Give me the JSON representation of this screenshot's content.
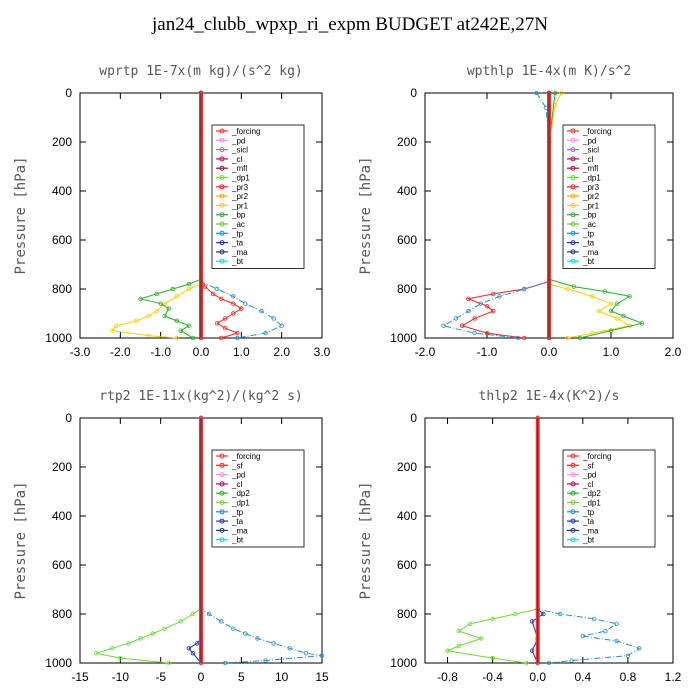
{
  "title": "jan24_clubb_wpxp_ri_expm  BUDGET at242E,27N",
  "chart_data": [
    {
      "type": "line",
      "title": "wprtp  1E-7x(m kg)/(s^2 kg)",
      "ylabel": "Pressure [hPa]",
      "xlim": [
        -3,
        3
      ],
      "xticks": [
        "-3.0",
        "-2.0",
        "-1.0",
        "0.0",
        "1.0",
        "2.0",
        "3.0"
      ],
      "xtick_values": [
        -3,
        -2,
        -1,
        0,
        1,
        2,
        3
      ],
      "ylim": [
        1000,
        0
      ],
      "yticks": [
        "0",
        "200",
        "400",
        "600",
        "800",
        "1000"
      ],
      "ytick_values": [
        0,
        200,
        400,
        600,
        800,
        1000
      ],
      "legend": [
        "_forcing",
        "_pd",
        "_sicl",
        "_cl",
        "_mfl",
        "_dp1",
        "_pr3",
        "_pr2",
        "_pr1",
        "_bp",
        "_ac",
        "_tp",
        "_ta",
        "_ma",
        "_bt"
      ],
      "series": [
        {
          "name": "_dp1",
          "color": "#ff2020",
          "values": [
            [
              0,
              0
            ],
            [
              0,
              750
            ],
            [
              0.1,
              790
            ],
            [
              0.3,
              820
            ],
            [
              0.5,
              840
            ],
            [
              0.8,
              860
            ],
            [
              1.0,
              880
            ],
            [
              0.8,
              900
            ],
            [
              0.6,
              920
            ],
            [
              0.4,
              940
            ],
            [
              0.6,
              960
            ],
            [
              0.9,
              980
            ],
            [
              0.5,
              1000
            ]
          ]
        },
        {
          "name": "_pr1",
          "color": "#ffcc00",
          "values": [
            [
              0,
              0
            ],
            [
              0,
              780
            ],
            [
              -0.3,
              800
            ],
            [
              -0.6,
              830
            ],
            [
              -0.9,
              860
            ],
            [
              -1.1,
              890
            ],
            [
              -1.3,
              910
            ],
            [
              -1.6,
              930
            ],
            [
              -2.1,
              950
            ],
            [
              -2.2,
              970
            ],
            [
              -1.3,
              990
            ],
            [
              -0.6,
              1000
            ]
          ]
        },
        {
          "name": "_bp",
          "color": "#22b422",
          "values": [
            [
              0,
              0
            ],
            [
              0,
              760
            ],
            [
              -0.3,
              780
            ],
            [
              -0.7,
              800
            ],
            [
              -1.1,
              820
            ],
            [
              -1.5,
              840
            ],
            [
              -1.0,
              860
            ],
            [
              -0.8,
              880
            ],
            [
              -0.9,
              910
            ],
            [
              -0.6,
              930
            ],
            [
              -0.3,
              950
            ],
            [
              -0.5,
              970
            ],
            [
              -0.2,
              1000
            ]
          ]
        },
        {
          "name": "_tp",
          "color": "#2090d0",
          "values": [
            [
              0,
              0
            ],
            [
              0,
              770
            ],
            [
              0.4,
              800
            ],
            [
              0.8,
              830
            ],
            [
              1.1,
              860
            ],
            [
              1.5,
              890
            ],
            [
              1.8,
              920
            ],
            [
              2.0,
              950
            ],
            [
              1.6,
              980
            ],
            [
              0.9,
              1000
            ]
          ]
        },
        {
          "name": "_bt",
          "color": "#b00020",
          "values": [
            [
              0,
              0
            ],
            [
              0,
              1000
            ]
          ]
        }
      ]
    },
    {
      "type": "line",
      "title": "wpthlp  1E-4x(m K)/s^2",
      "ylabel": "Pressure [hPa]",
      "xlim": [
        -2,
        2
      ],
      "xticks": [
        "-2.0",
        "-1.0",
        "0.0",
        "1.0",
        "2.0"
      ],
      "xtick_values": [
        -2,
        -1,
        0,
        1,
        2
      ],
      "ylim": [
        1000,
        0
      ],
      "yticks": [
        "0",
        "200",
        "400",
        "600",
        "800",
        "1000"
      ],
      "ytick_values": [
        0,
        200,
        400,
        600,
        800,
        1000
      ],
      "legend": [
        "_forcing",
        "_pd",
        "_sicl",
        "_cl",
        "_mfl",
        "_dp1",
        "_pr3",
        "_pr2",
        "_pr1",
        "_bp",
        "_ac",
        "_tp",
        "_ta",
        "_ma",
        "_bt"
      ],
      "series": [
        {
          "name": "_dp1",
          "color": "#ff2020",
          "values": [
            [
              0,
              0
            ],
            [
              0,
              770
            ],
            [
              -0.4,
              800
            ],
            [
              -0.9,
              820
            ],
            [
              -1.3,
              840
            ],
            [
              -1.0,
              870
            ],
            [
              -0.9,
              890
            ],
            [
              -1.2,
              920
            ],
            [
              -1.4,
              950
            ],
            [
              -1.0,
              980
            ],
            [
              -0.4,
              1000
            ]
          ]
        },
        {
          "name": "_pr1",
          "color": "#ffcc00",
          "values": [
            [
              0.2,
              0
            ],
            [
              0.1,
              50
            ],
            [
              0,
              200
            ],
            [
              0,
              780
            ],
            [
              0.3,
              800
            ],
            [
              0.7,
              830
            ],
            [
              1.0,
              860
            ],
            [
              0.8,
              890
            ],
            [
              1.1,
              920
            ],
            [
              1.3,
              950
            ],
            [
              0.7,
              980
            ],
            [
              0.3,
              1000
            ]
          ]
        },
        {
          "name": "_bp",
          "color": "#22b422",
          "values": [
            [
              0.1,
              0
            ],
            [
              0,
              200
            ],
            [
              0,
              760
            ],
            [
              0.4,
              790
            ],
            [
              0.9,
              810
            ],
            [
              1.3,
              830
            ],
            [
              1.1,
              860
            ],
            [
              1.0,
              890
            ],
            [
              1.2,
              910
            ],
            [
              1.5,
              940
            ],
            [
              1.0,
              970
            ],
            [
              0.5,
              1000
            ]
          ]
        },
        {
          "name": "_tp",
          "color": "#2090d0",
          "values": [
            [
              -0.2,
              0
            ],
            [
              -0.05,
              60
            ],
            [
              0,
              200
            ],
            [
              0,
              770
            ],
            [
              -0.4,
              800
            ],
            [
              -0.8,
              830
            ],
            [
              -1.1,
              860
            ],
            [
              -1.3,
              890
            ],
            [
              -1.5,
              920
            ],
            [
              -1.7,
              950
            ],
            [
              -1.2,
              980
            ],
            [
              -0.5,
              1000
            ]
          ]
        },
        {
          "name": "_bt",
          "color": "#b00020",
          "values": [
            [
              0,
              0
            ],
            [
              0,
              1000
            ]
          ]
        }
      ]
    },
    {
      "type": "line",
      "title": "rtp2  1E-11x(kg^2)/(kg^2 s)",
      "ylabel": "Pressure [hPa]",
      "xlim": [
        -15,
        15
      ],
      "xticks": [
        "-15",
        "-10",
        "-5",
        "0",
        "5",
        "10",
        "15"
      ],
      "xtick_values": [
        -15,
        -10,
        -5,
        0,
        5,
        10,
        15
      ],
      "ylim": [
        1000,
        0
      ],
      "yticks": [
        "0",
        "200",
        "400",
        "600",
        "800",
        "1000"
      ],
      "ytick_values": [
        0,
        200,
        400,
        600,
        800,
        1000
      ],
      "legend": [
        "_forcing",
        "_sf",
        "_pd",
        "_cl",
        "_dp2",
        "_dp1",
        "_tp",
        "_ta",
        "_ma",
        "_bt"
      ],
      "series": [
        {
          "name": "_dp1",
          "color": "#66dd33",
          "values": [
            [
              0,
              0
            ],
            [
              0,
              780
            ],
            [
              -1,
              800
            ],
            [
              -2.5,
              830
            ],
            [
              -4.5,
              860
            ],
            [
              -6,
              880
            ],
            [
              -7.5,
              900
            ],
            [
              -9,
              920
            ],
            [
              -11,
              940
            ],
            [
              -13,
              960
            ],
            [
              -10,
              980
            ],
            [
              -4,
              1000
            ]
          ]
        },
        {
          "name": "_tp",
          "color": "#2090d0",
          "values": [
            [
              0,
              0
            ],
            [
              0,
              780
            ],
            [
              1,
              800
            ],
            [
              2.5,
              830
            ],
            [
              4,
              860
            ],
            [
              5.5,
              880
            ],
            [
              7,
              900
            ],
            [
              9,
              920
            ],
            [
              11,
              940
            ],
            [
              13,
              960
            ],
            [
              15,
              970
            ],
            [
              8,
              990
            ],
            [
              3,
              1000
            ]
          ]
        },
        {
          "name": "_ta",
          "color": "#2030c0",
          "values": [
            [
              0,
              0
            ],
            [
              0,
              900
            ],
            [
              -0.5,
              920
            ],
            [
              -1.5,
              940
            ],
            [
              -1,
              960
            ],
            [
              0,
              1000
            ]
          ]
        },
        {
          "name": "_forcing",
          "color": "#ff3030",
          "values": [
            [
              0,
              0
            ],
            [
              0,
              1000
            ]
          ]
        }
      ]
    },
    {
      "type": "line",
      "title": "thlp2  1E-4x(K^2)/s",
      "ylabel": "Pressure [hPa]",
      "xlim": [
        -1,
        1.2
      ],
      "xticks": [
        "-0.8",
        "-0.4",
        "0.0",
        "0.4",
        "0.8",
        "1.2"
      ],
      "xtick_values": [
        -0.8,
        -0.4,
        0,
        0.4,
        0.8,
        1.2
      ],
      "ylim": [
        1000,
        0
      ],
      "yticks": [
        "0",
        "200",
        "400",
        "600",
        "800",
        "1000"
      ],
      "ytick_values": [
        0,
        200,
        400,
        600,
        800,
        1000
      ],
      "legend": [
        "_forcing",
        "_sf",
        "_pd",
        "_cl",
        "_dp2",
        "_dp1",
        "_tp",
        "_ta",
        "_ma",
        "_bt"
      ],
      "series": [
        {
          "name": "_dp1",
          "color": "#66dd33",
          "values": [
            [
              0,
              0
            ],
            [
              0,
              780
            ],
            [
              -0.2,
              800
            ],
            [
              -0.4,
              820
            ],
            [
              -0.6,
              840
            ],
            [
              -0.7,
              870
            ],
            [
              -0.5,
              900
            ],
            [
              -0.7,
              930
            ],
            [
              -0.8,
              950
            ],
            [
              -0.4,
              980
            ],
            [
              -0.1,
              1000
            ]
          ]
        },
        {
          "name": "_tp",
          "color": "#2090d0",
          "values": [
            [
              0,
              0
            ],
            [
              0,
              780
            ],
            [
              0.2,
              800
            ],
            [
              0.5,
              820
            ],
            [
              0.7,
              840
            ],
            [
              0.6,
              870
            ],
            [
              0.4,
              890
            ],
            [
              0.7,
              910
            ],
            [
              0.9,
              940
            ],
            [
              0.8,
              970
            ],
            [
              0.3,
              990
            ],
            [
              0.1,
              1000
            ]
          ]
        },
        {
          "name": "_ta",
          "color": "#2030c0",
          "values": [
            [
              0,
              0
            ],
            [
              0,
              780
            ],
            [
              0.05,
              800
            ],
            [
              -0.05,
              830
            ],
            [
              0,
              900
            ],
            [
              -0.05,
              950
            ],
            [
              0,
              1000
            ]
          ]
        },
        {
          "name": "_forcing",
          "color": "#ff3030",
          "values": [
            [
              0,
              0
            ],
            [
              0,
              1000
            ]
          ]
        }
      ]
    }
  ]
}
